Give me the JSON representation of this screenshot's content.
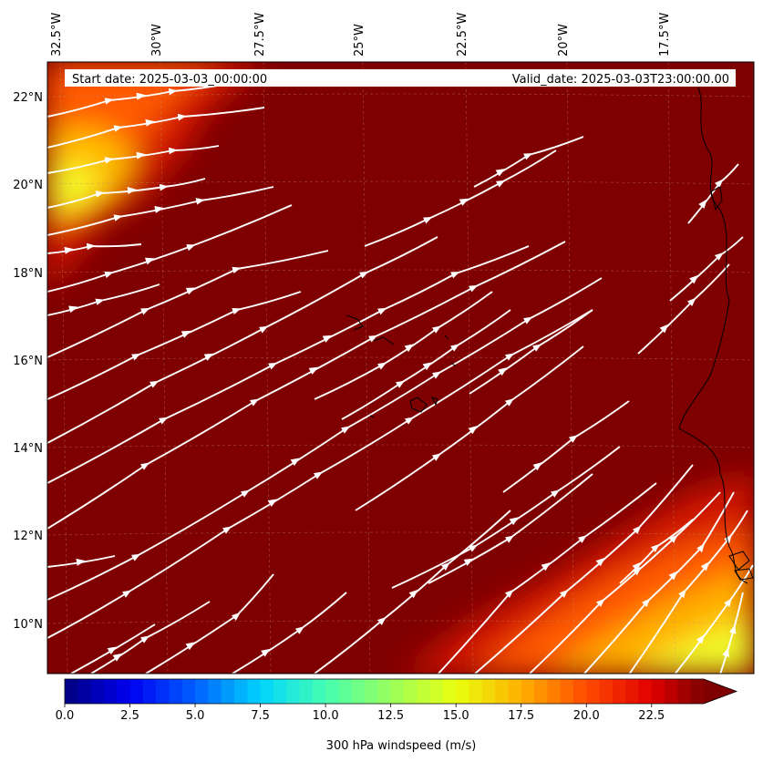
{
  "header": {
    "start_date": "Start date: 2025-03-03_00:00:00",
    "valid_date": "Valid_date: 2025-03-03T23:00:00.00"
  },
  "map": {
    "longitude_labels": [
      "32.5°W",
      "30°W",
      "27.5°W",
      "25°W",
      "22.5°W",
      "20°W",
      "17.5°W"
    ],
    "latitude_labels": [
      "22°N",
      "20°N",
      "18°N",
      "16°N",
      "14°N",
      "12°N",
      "10°N"
    ],
    "lon_range_deg": [
      -32.5,
      -15.25
    ],
    "lat_range_deg": [
      8.9,
      22.8
    ],
    "field_colors": {
      "background": "#7f0000",
      "mid": "#ff4a00",
      "high": "#fffb00",
      "streamline": "#ffffff",
      "coast": "#000000"
    }
  },
  "colorbar": {
    "label": "300 hPa windspeed (m/s)",
    "ticks": [
      "0.0",
      "2.5",
      "5.0",
      "7.5",
      "10.0",
      "12.5",
      "15.0",
      "17.5",
      "20.0",
      "22.5"
    ],
    "range": [
      0,
      24.5
    ],
    "extend": "max"
  }
}
